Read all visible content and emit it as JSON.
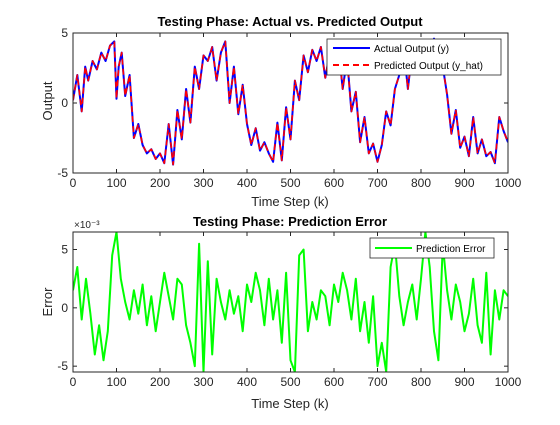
{
  "chart_data": [
    {
      "type": "line",
      "title": "Testing Phase: Actual vs. Predicted Output",
      "xlabel": "Time Step (k)",
      "ylabel": "Output",
      "xlim": [
        0,
        1000
      ],
      "ylim": [
        -5,
        5
      ],
      "xticks": [
        0,
        100,
        200,
        300,
        400,
        500,
        600,
        700,
        800,
        900,
        1000
      ],
      "yticks": [
        -5,
        0,
        5
      ],
      "grid": false,
      "legend_position": "top-right",
      "series": [
        {
          "name": "Actual Output (y)",
          "color": "#0000ff",
          "style": "solid",
          "x": [
            0,
            10,
            20,
            28,
            35,
            45,
            55,
            65,
            75,
            85,
            95,
            100,
            105,
            112,
            120,
            130,
            140,
            150,
            160,
            170,
            180,
            190,
            200,
            210,
            220,
            230,
            240,
            250,
            260,
            270,
            280,
            290,
            300,
            310,
            320,
            330,
            340,
            350,
            360,
            370,
            380,
            390,
            400,
            410,
            420,
            430,
            440,
            450,
            460,
            470,
            480,
            490,
            500,
            510,
            520,
            530,
            540,
            550,
            560,
            570,
            580,
            590,
            600,
            610,
            620,
            630,
            640,
            650,
            660,
            670,
            680,
            690,
            700,
            710,
            720,
            730,
            740,
            750,
            760,
            770,
            780,
            790,
            800,
            810,
            820,
            830,
            840,
            850,
            860,
            870,
            880,
            890,
            900,
            910,
            920,
            930,
            940,
            950,
            960,
            970,
            980,
            990,
            1000
          ],
          "y": [
            0.2,
            2.0,
            -0.6,
            2.6,
            1.6,
            3.0,
            2.4,
            3.6,
            3.0,
            4.1,
            4.4,
            0.3,
            2.6,
            3.6,
            0.5,
            2.0,
            -2.5,
            -1.5,
            -3.0,
            -3.6,
            -3.3,
            -4.0,
            -3.6,
            -4.3,
            -1.5,
            -4.4,
            -0.5,
            -2.6,
            1.0,
            -1.4,
            2.6,
            1.0,
            3.4,
            3.0,
            4.0,
            1.6,
            3.6,
            4.4,
            0.0,
            2.6,
            -0.8,
            1.3,
            -1.5,
            -3.0,
            -1.8,
            -3.4,
            -2.8,
            -3.6,
            -4.2,
            -1.4,
            -4.1,
            -0.3,
            -2.6,
            1.6,
            0.2,
            3.4,
            2.2,
            3.8,
            3.0,
            4.0,
            1.8,
            3.5,
            3.0,
            4.1,
            1.0,
            3.2,
            -0.6,
            0.8,
            -2.8,
            -1.0,
            -3.6,
            -2.9,
            -4.2,
            -3.0,
            -0.6,
            -1.6,
            1.0,
            2.0,
            4.0,
            1.0,
            3.8,
            2.6,
            4.2,
            4.1,
            2.8,
            4.6,
            3.6,
            2.6,
            0.6,
            -2.2,
            -0.5,
            -3.2,
            -2.4,
            -3.8,
            -1.0,
            -3.6,
            -2.6,
            -3.8,
            -3.5,
            -4.3,
            -1.0,
            -2.0,
            -2.8
          ]
        },
        {
          "name": "Predicted Output (y_hat)",
          "color": "#ff0000",
          "style": "dashed",
          "x": [
            0,
            10,
            20,
            28,
            35,
            45,
            55,
            65,
            75,
            85,
            95,
            100,
            105,
            112,
            120,
            130,
            140,
            150,
            160,
            170,
            180,
            190,
            200,
            210,
            220,
            230,
            240,
            250,
            260,
            270,
            280,
            290,
            300,
            310,
            320,
            330,
            340,
            350,
            360,
            370,
            380,
            390,
            400,
            410,
            420,
            430,
            440,
            450,
            460,
            470,
            480,
            490,
            500,
            510,
            520,
            530,
            540,
            550,
            560,
            570,
            580,
            590,
            600,
            610,
            620,
            630,
            640,
            650,
            660,
            670,
            680,
            690,
            700,
            710,
            720,
            730,
            740,
            750,
            760,
            770,
            780,
            790,
            800,
            810,
            820,
            830,
            840,
            850,
            860,
            870,
            880,
            890,
            900,
            910,
            920,
            930,
            940,
            950,
            960,
            970,
            980,
            990,
            1000
          ],
          "y": [
            0.2,
            2.0,
            -0.6,
            2.6,
            1.6,
            3.0,
            2.4,
            3.6,
            3.0,
            4.1,
            4.4,
            0.3,
            2.6,
            3.6,
            0.5,
            2.0,
            -2.5,
            -1.5,
            -3.0,
            -3.6,
            -3.3,
            -4.0,
            -3.6,
            -4.3,
            -1.5,
            -4.4,
            -0.5,
            -2.6,
            1.0,
            -1.4,
            2.6,
            1.0,
            3.4,
            3.0,
            4.0,
            1.6,
            3.6,
            4.4,
            0.0,
            2.6,
            -0.8,
            1.3,
            -1.5,
            -3.0,
            -1.8,
            -3.4,
            -2.8,
            -3.6,
            -4.2,
            -1.4,
            -4.1,
            -0.3,
            -2.6,
            1.6,
            0.2,
            3.4,
            2.2,
            3.8,
            3.0,
            4.0,
            1.8,
            3.5,
            3.0,
            4.1,
            1.0,
            3.2,
            -0.6,
            0.8,
            -2.8,
            -1.0,
            -3.6,
            -2.9,
            -4.2,
            -3.0,
            -0.6,
            -1.6,
            1.0,
            2.0,
            4.0,
            1.0,
            3.8,
            2.6,
            4.2,
            4.1,
            2.8,
            4.6,
            3.6,
            2.6,
            0.6,
            -2.2,
            -0.5,
            -3.2,
            -2.4,
            -3.8,
            -1.0,
            -3.6,
            -2.6,
            -3.8,
            -3.5,
            -4.3,
            -1.0,
            -2.0,
            -2.8
          ]
        }
      ]
    },
    {
      "type": "line",
      "title": "Testing Phase: Prediction Error",
      "xlabel": "Time Step (k)",
      "ylabel": "Error",
      "y_exponent_label": "×10⁻³",
      "xlim": [
        0,
        1000
      ],
      "ylim": [
        -0.0055,
        0.0065
      ],
      "xticks": [
        0,
        100,
        200,
        300,
        400,
        500,
        600,
        700,
        800,
        900,
        1000
      ],
      "yticks": [
        -0.005,
        0,
        0.005
      ],
      "ytick_labels": [
        "-5",
        "0",
        "5"
      ],
      "grid": false,
      "legend_position": "top-right",
      "series": [
        {
          "name": "Prediction Error",
          "color": "#00ff00",
          "style": "solid",
          "x": [
            0,
            10,
            20,
            30,
            40,
            50,
            60,
            70,
            80,
            90,
            100,
            110,
            120,
            130,
            140,
            150,
            160,
            170,
            180,
            190,
            200,
            210,
            220,
            230,
            240,
            250,
            260,
            270,
            280,
            290,
            300,
            310,
            320,
            330,
            340,
            350,
            360,
            370,
            380,
            390,
            400,
            410,
            420,
            430,
            440,
            450,
            460,
            470,
            480,
            490,
            500,
            510,
            520,
            530,
            540,
            550,
            560,
            570,
            580,
            590,
            600,
            610,
            620,
            630,
            640,
            650,
            660,
            670,
            680,
            690,
            700,
            710,
            720,
            730,
            740,
            750,
            760,
            770,
            780,
            790,
            800,
            810,
            820,
            830,
            840,
            850,
            860,
            870,
            880,
            890,
            900,
            910,
            920,
            930,
            940,
            950,
            960,
            970,
            980,
            990,
            1000
          ],
          "y": [
            0.0015,
            0.0035,
            -0.001,
            0.0025,
            -0.0005,
            -0.004,
            -0.0015,
            -0.0045,
            -0.002,
            0.0045,
            0.0065,
            0.0025,
            0.0005,
            -0.001,
            0.0015,
            -0.0005,
            0.002,
            -0.0015,
            0.001,
            -0.002,
            0.0005,
            0.003,
            0.001,
            -0.001,
            0.0025,
            0.002,
            -0.0015,
            -0.003,
            -0.005,
            0.0055,
            -0.0055,
            0.004,
            -0.004,
            0.0025,
            0.0005,
            -0.001,
            0.0015,
            -0.0005,
            0.001,
            -0.002,
            0.002,
            0.0005,
            0.003,
            0.0015,
            -0.0015,
            0.0025,
            -0.001,
            0.0015,
            -0.003,
            0.003,
            -0.0045,
            -0.0055,
            0.0045,
            0.005,
            -0.002,
            0.0005,
            -0.001,
            0.0015,
            0.001,
            -0.0015,
            0.002,
            0.0005,
            0.003,
            0.0015,
            -0.001,
            0.0025,
            -0.002,
            0.0005,
            -0.003,
            0.001,
            -0.005,
            -0.003,
            -0.0055,
            0.0035,
            0.0055,
            0.001,
            -0.0015,
            0.0005,
            0.002,
            -0.001,
            0.0025,
            0.0065,
            0.0035,
            -0.002,
            -0.0045,
            0.0055,
            0.0015,
            -0.001,
            0.002,
            0.0005,
            -0.002,
            -0.0005,
            0.0025,
            -0.0015,
            -0.003,
            0.003,
            -0.004,
            0.0015,
            -0.001,
            0.0015,
            0.001
          ]
        }
      ]
    }
  ]
}
